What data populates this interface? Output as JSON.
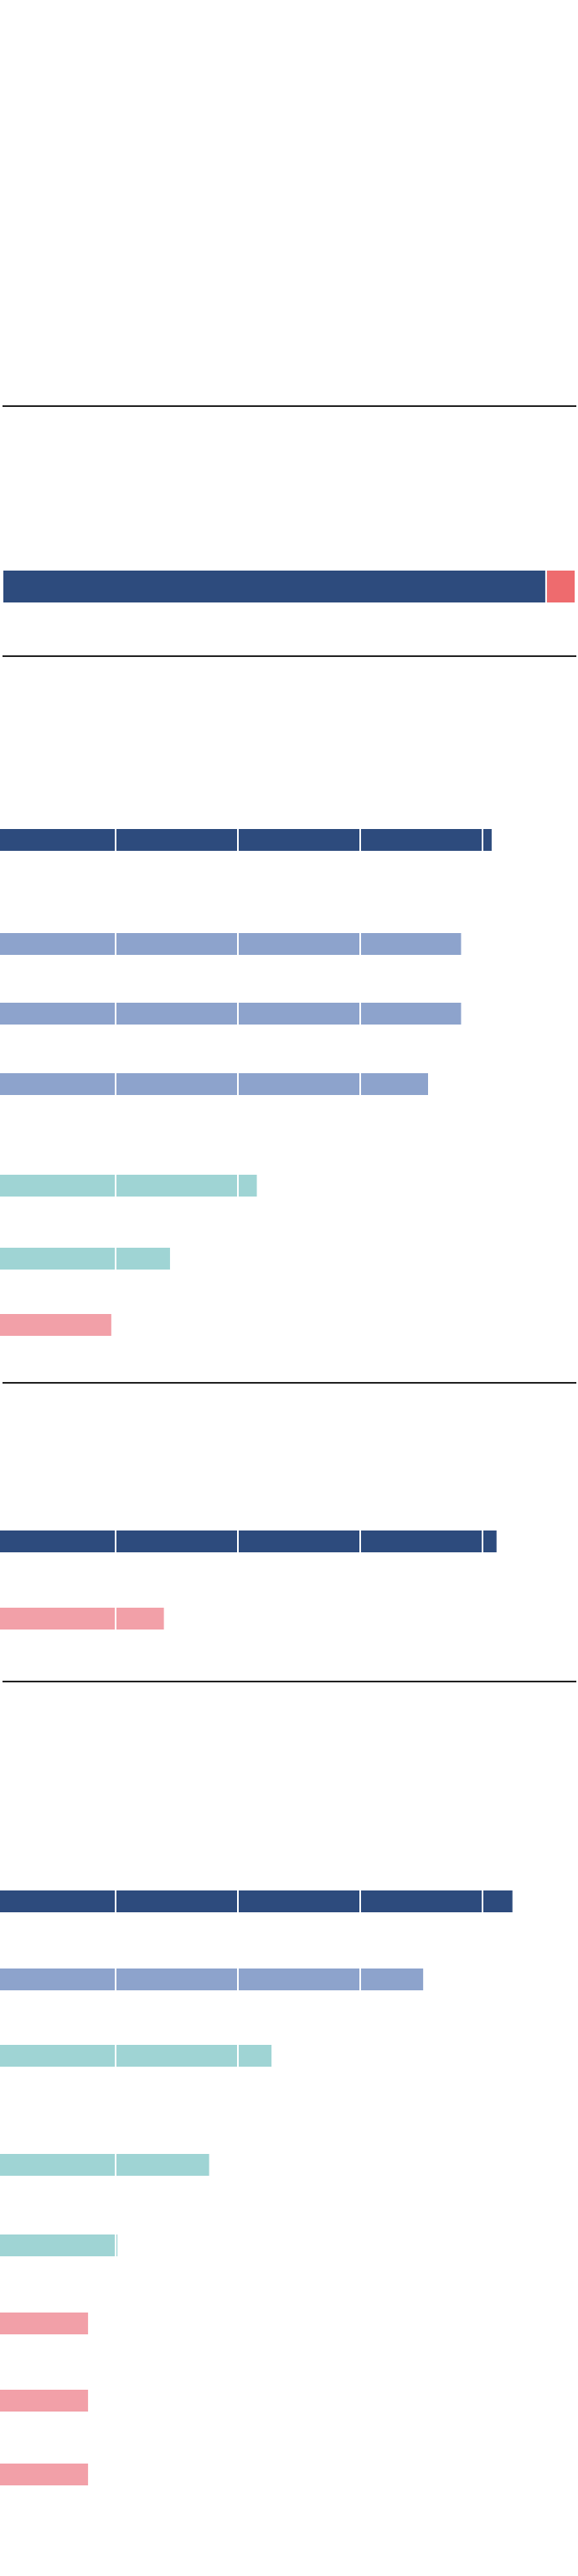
{
  "colors": {
    "navy": "#2d4b7d",
    "periwinkle": "#8da3cc",
    "teal": "#9fd4d4",
    "pink": "#f2a0a8",
    "coral": "#ee6b6e",
    "rule": "#222222",
    "tick": "#ffffff"
  },
  "chart_data": [
    {
      "type": "bar",
      "orientation": "horizontal",
      "stacked": true,
      "segments": [
        {
          "color": "navy",
          "value": 95
        },
        {
          "color": "coral",
          "value": 5
        }
      ]
    },
    {
      "type": "bar",
      "orientation": "horizontal",
      "grid_ticks": [
        0,
        1,
        2,
        3
      ],
      "bars": [
        {
          "color": "navy",
          "value": 4.02
        },
        {
          "color": "periwinkle",
          "value": 3.77
        },
        {
          "color": "periwinkle",
          "value": 3.77
        },
        {
          "color": "periwinkle",
          "value": 3.5
        },
        {
          "color": "teal",
          "value": 2.1
        },
        {
          "color": "teal",
          "value": 1.39
        },
        {
          "color": "pink",
          "value": 0.91
        }
      ]
    },
    {
      "type": "bar",
      "orientation": "horizontal",
      "grid_ticks": [
        0,
        1,
        2,
        3
      ],
      "bars": [
        {
          "color": "navy",
          "value": 4.06
        },
        {
          "color": "pink",
          "value": 1.34
        }
      ]
    },
    {
      "type": "bar",
      "orientation": "horizontal",
      "grid_ticks": [
        0,
        1,
        2,
        3
      ],
      "bars": [
        {
          "color": "navy",
          "value": 4.19
        },
        {
          "color": "periwinkle",
          "value": 3.46
        },
        {
          "color": "teal",
          "value": 2.22
        },
        {
          "color": "teal",
          "value": 1.71
        },
        {
          "color": "teal",
          "value": 0.96
        },
        {
          "color": "pink",
          "value": 0.72
        },
        {
          "color": "pink",
          "value": 0.72
        },
        {
          "color": "pink",
          "value": 0.72
        }
      ]
    }
  ]
}
